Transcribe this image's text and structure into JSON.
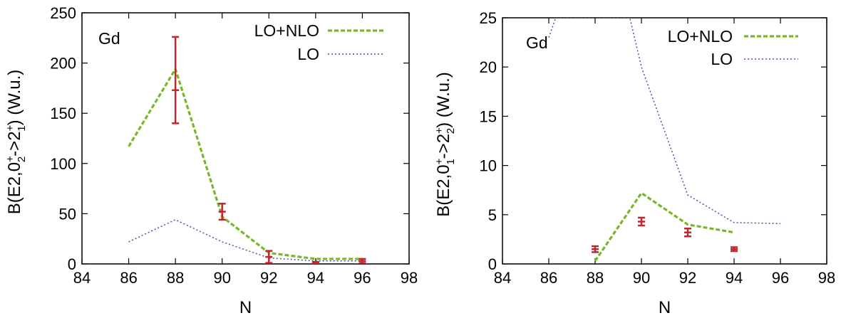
{
  "chart_data": [
    {
      "type": "line",
      "annotation": "Gd",
      "xlabel": "N",
      "ylabel_parts": [
        "B(E2,0",
        "+",
        "2",
        "->2",
        "+",
        "1",
        ") (W.u.)"
      ],
      "xlim": [
        84,
        98
      ],
      "ylim": [
        0,
        250
      ],
      "xticks": [
        84,
        86,
        88,
        90,
        92,
        94,
        96,
        98
      ],
      "yticks": [
        0,
        50,
        100,
        150,
        200,
        250
      ],
      "legend_position": "top-right",
      "series": [
        {
          "name": "LO+NLO",
          "color": "#77b82a",
          "dash": "6,3",
          "width": 3.2,
          "x": [
            86,
            88,
            90,
            92,
            94,
            96
          ],
          "y": [
            117,
            194,
            47,
            11,
            5,
            5
          ]
        },
        {
          "name": "LO",
          "color": "#4b4fa8",
          "dash": "2,3",
          "width": 1.5,
          "x": [
            86,
            88,
            90,
            92,
            94,
            96
          ],
          "y": [
            22,
            44,
            22,
            6,
            3,
            3
          ]
        }
      ],
      "experiment": {
        "color": "#c0272d",
        "points": [
          {
            "x": 88,
            "y": 173,
            "lo": 140,
            "hi": 226
          },
          {
            "x": 90,
            "y": 52,
            "lo": 44,
            "hi": 60
          },
          {
            "x": 92,
            "y": 7,
            "lo": 1,
            "hi": 13
          },
          {
            "x": 94,
            "y": 1,
            "lo": 0,
            "hi": 2
          },
          {
            "x": 96,
            "y": 3,
            "lo": 1,
            "hi": 5
          }
        ]
      }
    },
    {
      "type": "line",
      "annotation": "Gd",
      "xlabel": "N",
      "ylabel_parts": [
        "B(E2,0",
        "+",
        "1",
        "->2",
        "+",
        "2",
        ") (W.u.)"
      ],
      "xlim": [
        84,
        98
      ],
      "ylim": [
        0,
        25
      ],
      "xticks": [
        84,
        86,
        88,
        90,
        92,
        94,
        96,
        98
      ],
      "yticks": [
        0,
        5,
        10,
        15,
        20,
        25
      ],
      "legend_position": "top-right",
      "series": [
        {
          "name": "LO+NLO",
          "color": "#77b82a",
          "dash": "6,3",
          "width": 3.2,
          "x": [
            88,
            90,
            92,
            94
          ],
          "y": [
            0.3,
            7.2,
            4.0,
            3.2
          ]
        },
        {
          "name": "LO",
          "color": "#4b4fa8",
          "dash": "2,3",
          "width": 1.5,
          "x": [
            86,
            86.3,
            89.5,
            90,
            92,
            94,
            96
          ],
          "y": [
            23,
            25,
            25,
            20,
            7,
            4.2,
            4.1
          ]
        }
      ],
      "experiment": {
        "color": "#c0272d",
        "points": [
          {
            "x": 88,
            "y": 1.5,
            "lo": 1.2,
            "hi": 1.8
          },
          {
            "x": 90,
            "y": 4.3,
            "lo": 3.9,
            "hi": 4.7
          },
          {
            "x": 92,
            "y": 3.2,
            "lo": 2.8,
            "hi": 3.6
          },
          {
            "x": 94,
            "y": 1.5,
            "lo": 1.3,
            "hi": 1.7
          }
        ]
      }
    }
  ]
}
